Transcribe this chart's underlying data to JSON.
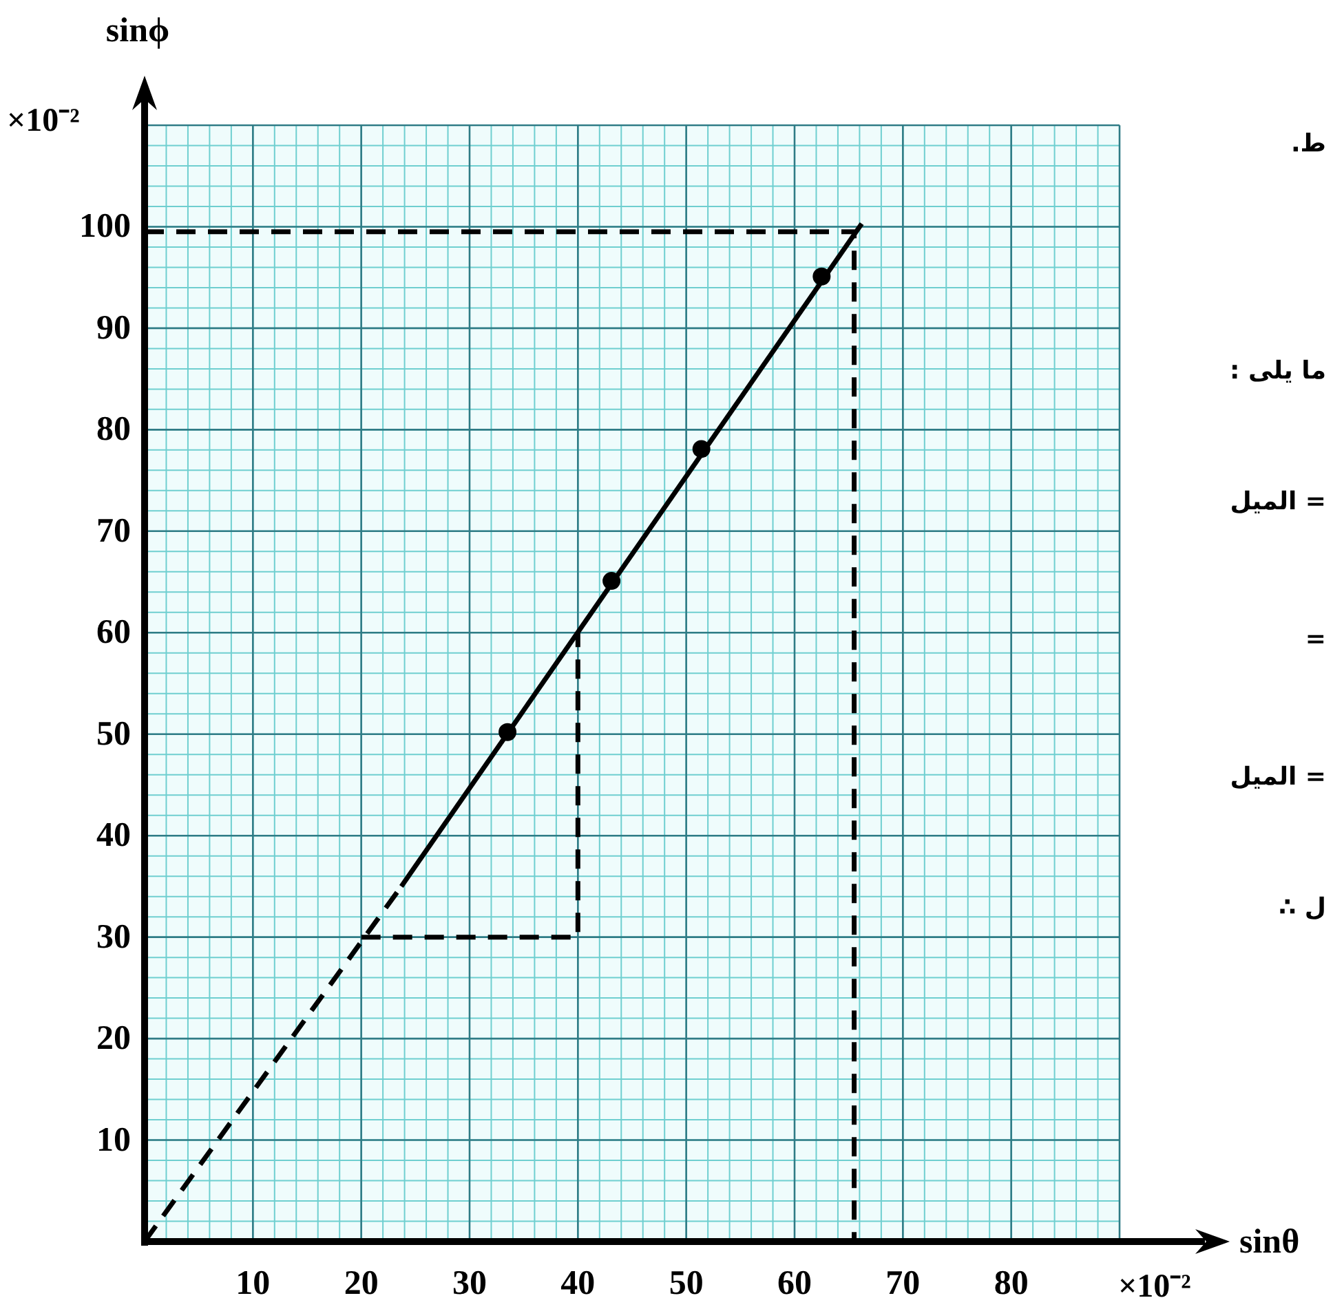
{
  "chart_data": {
    "type": "line",
    "xlabel": "sinθ",
    "ylabel": "sinϕ",
    "xlim": [
      0,
      90
    ],
    "ylim": [
      0,
      110
    ],
    "xticks": [
      10,
      20,
      30,
      40,
      50,
      60,
      70,
      80
    ],
    "yticks": [
      10,
      20,
      30,
      40,
      50,
      60,
      70,
      80,
      90,
      100
    ],
    "grid": true,
    "annotations": [
      "×10⁻²",
      "×10⁻²",
      "ط.",
      "ما يلى :",
      "= الميل",
      "=",
      "= الميل",
      "ل ∴"
    ],
    "series": [
      {
        "line_style": "dashed",
        "color": "#000000",
        "x": [
          0,
          23.7
        ],
        "values": [
          0,
          35
        ]
      },
      {
        "line_style": "solid",
        "color": "#000000",
        "x": [
          23.7,
          66.2
        ],
        "values": [
          35,
          100.3
        ]
      },
      {
        "type": "scatter",
        "marker": "circle",
        "color": "#000000",
        "x": [
          33.5,
          43.1,
          51.4,
          62.5
        ],
        "values": [
          50.2,
          65.1,
          78.1,
          95.1
        ]
      },
      {
        "line_style": "dashed",
        "color": "#000000",
        "x": [
          0,
          65.5,
          65.5
        ],
        "values": [
          99.5,
          99.5,
          0
        ]
      },
      {
        "line_style": "dashed",
        "color": "#000000",
        "x": [
          20,
          40,
          40
        ],
        "values": [
          30,
          30,
          60
        ]
      }
    ]
  }
}
